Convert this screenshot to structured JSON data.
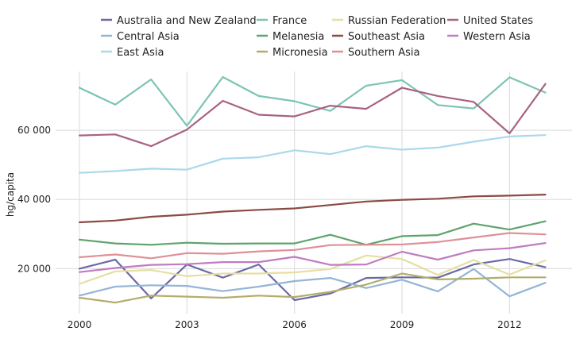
{
  "chart_data": {
    "type": "line",
    "title": "",
    "xlabel": "",
    "ylabel": "hg/capita",
    "xlim": [
      2000,
      2013.3
    ],
    "ylim": [
      7000,
      77000
    ],
    "x_ticks": [
      2000,
      2003,
      2006,
      2009,
      2012
    ],
    "x_tick_labels": [
      "2000",
      "2003",
      "2006",
      "2009",
      "2012"
    ],
    "y_ticks": [
      20000,
      40000,
      60000
    ],
    "y_tick_labels": [
      "20 000",
      "40 000",
      "60 000"
    ],
    "grid": true,
    "legend_position": "top",
    "x": [
      2000,
      2001,
      2002,
      2003,
      2004,
      2005,
      2006,
      2007,
      2008,
      2009,
      2010,
      2011,
      2012,
      2013
    ],
    "series": [
      {
        "name": "Australia and New Zealand",
        "color": "#6a6aa8",
        "values": [
          20000,
          22600,
          11400,
          21200,
          17400,
          21200,
          10900,
          12800,
          17300,
          17500,
          17400,
          21200,
          22800,
          20400
        ]
      },
      {
        "name": "Central Asia",
        "color": "#94b5d6",
        "values": [
          12200,
          14800,
          15200,
          15000,
          13500,
          14800,
          16400,
          17300,
          14400,
          16800,
          13400,
          19900,
          12000,
          15900
        ]
      },
      {
        "name": "East Asia",
        "color": "#aad8ec",
        "values": [
          47700,
          48200,
          48900,
          48600,
          51800,
          52200,
          54200,
          53100,
          55400,
          54400,
          55000,
          56700,
          58200,
          58600
        ]
      },
      {
        "name": "France",
        "color": "#7cc4b4",
        "values": [
          72300,
          67400,
          74700,
          61300,
          75400,
          69900,
          68400,
          65600,
          72900,
          74500,
          67300,
          66300,
          75300,
          70900
        ]
      },
      {
        "name": "Melanesia",
        "color": "#5ea46c",
        "values": [
          28400,
          27300,
          26900,
          27500,
          27200,
          27300,
          27300,
          29800,
          26900,
          29400,
          29700,
          33000,
          31300,
          33700
        ]
      },
      {
        "name": "Micronesia",
        "color": "#b3ad6c",
        "values": [
          11600,
          10200,
          12200,
          11900,
          11600,
          12200,
          11800,
          13300,
          15400,
          18600,
          16900,
          17100,
          17500,
          17500
        ]
      },
      {
        "name": "Russian Federation",
        "color": "#e6dfa2",
        "values": [
          15600,
          19200,
          19600,
          17800,
          18600,
          18600,
          18900,
          19900,
          23800,
          22800,
          18200,
          22500,
          18300,
          22400
        ]
      },
      {
        "name": "Southeast Asia",
        "color": "#8c4a44",
        "values": [
          33400,
          33900,
          35000,
          35600,
          36500,
          37000,
          37400,
          38400,
          39400,
          39900,
          40200,
          40900,
          41100,
          41400
        ]
      },
      {
        "name": "Southern Asia",
        "color": "#df9096",
        "values": [
          23300,
          24100,
          23000,
          24500,
          24300,
          25000,
          25400,
          26800,
          26900,
          27000,
          27700,
          29000,
          30300,
          29900
        ]
      },
      {
        "name": "United States",
        "color": "#a86282",
        "values": [
          58500,
          58800,
          55400,
          60200,
          68500,
          64500,
          64000,
          67100,
          66200,
          72300,
          69900,
          68200,
          59100,
          73400
        ]
      },
      {
        "name": "Western Asia",
        "color": "#c07cc0",
        "values": [
          19000,
          20200,
          21100,
          21300,
          21900,
          21900,
          23400,
          21100,
          21200,
          24900,
          22600,
          25300,
          25900,
          27400
        ]
      }
    ]
  }
}
